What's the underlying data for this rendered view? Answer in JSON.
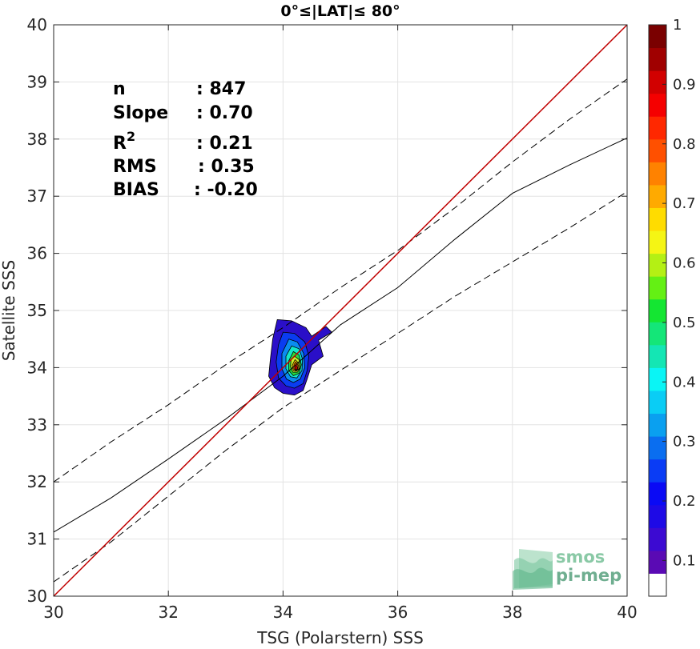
{
  "chart_data": {
    "type": "heatmap",
    "title": "0°≤|LAT|≤ 80°",
    "xlabel": "TSG (Polarstern) SSS",
    "ylabel": "Satellite SSS",
    "xlim": [
      30,
      40
    ],
    "ylim": [
      30,
      40
    ],
    "xticks": [
      "30",
      "32",
      "34",
      "36",
      "38",
      "40"
    ],
    "yticks": [
      "30",
      "31",
      "32",
      "33",
      "34",
      "35",
      "36",
      "37",
      "38",
      "39",
      "40"
    ],
    "grid": true,
    "stats": [
      {
        "label": "n",
        "value": ": 847"
      },
      {
        "label": "Slope",
        "value": ": 0.70"
      },
      {
        "label": "R",
        "sup": "2",
        "value": ": 0.21"
      },
      {
        "label": "RMS",
        "value": ": 0.35"
      },
      {
        "label": "BIAS",
        "value": ": -0.20"
      }
    ],
    "identity_line": {
      "slope": 1,
      "intercept": 0,
      "color": "#c00000"
    },
    "regression_line": {
      "points": [
        [
          30,
          31.12
        ],
        [
          31,
          31.72
        ],
        [
          32,
          32.4
        ],
        [
          33,
          33.1
        ],
        [
          34,
          33.85
        ],
        [
          35,
          34.75
        ],
        [
          36,
          35.4
        ],
        [
          37,
          36.25
        ],
        [
          38,
          37.05
        ],
        [
          39,
          37.55
        ],
        [
          40,
          38.02
        ]
      ]
    },
    "confidence_upper": {
      "points": [
        [
          30,
          32.0
        ],
        [
          31,
          32.7
        ],
        [
          32,
          33.35
        ],
        [
          33,
          34.05
        ],
        [
          34,
          34.7
        ],
        [
          35,
          35.4
        ],
        [
          36,
          36.05
        ],
        [
          37,
          36.8
        ],
        [
          38,
          37.6
        ],
        [
          39,
          38.35
        ],
        [
          40,
          39.05
        ]
      ]
    },
    "confidence_lower": {
      "points": [
        [
          30,
          30.25
        ],
        [
          31,
          30.95
        ],
        [
          32,
          31.75
        ],
        [
          33,
          32.55
        ],
        [
          34,
          33.3
        ],
        [
          35,
          33.95
        ],
        [
          36,
          34.6
        ],
        [
          37,
          35.25
        ],
        [
          38,
          35.85
        ],
        [
          39,
          36.45
        ],
        [
          40,
          37.08
        ]
      ]
    },
    "density_contours": [
      {
        "level": 0.1,
        "color": "#2a0fc8",
        "points": [
          [
            33.9,
            34.84
          ],
          [
            34.15,
            34.82
          ],
          [
            34.4,
            34.7
          ],
          [
            34.5,
            34.55
          ],
          [
            34.75,
            34.72
          ],
          [
            34.85,
            34.62
          ],
          [
            34.62,
            34.48
          ],
          [
            34.7,
            34.2
          ],
          [
            34.5,
            34.05
          ],
          [
            34.42,
            33.8
          ],
          [
            34.35,
            33.6
          ],
          [
            34.2,
            33.52
          ],
          [
            34.0,
            33.55
          ],
          [
            33.85,
            33.65
          ],
          [
            33.75,
            33.85
          ],
          [
            33.78,
            34.15
          ],
          [
            33.82,
            34.5
          ]
        ]
      },
      {
        "level": 0.2,
        "color": "#0a3cf0",
        "points": [
          [
            34.0,
            34.62
          ],
          [
            34.2,
            34.6
          ],
          [
            34.38,
            34.45
          ],
          [
            34.45,
            34.2
          ],
          [
            34.42,
            33.95
          ],
          [
            34.35,
            33.72
          ],
          [
            34.2,
            33.64
          ],
          [
            34.05,
            33.68
          ],
          [
            33.92,
            33.82
          ],
          [
            33.88,
            34.1
          ],
          [
            33.92,
            34.4
          ]
        ]
      },
      {
        "level": 0.3,
        "color": "#0a8cf0",
        "points": [
          [
            34.1,
            34.5
          ],
          [
            34.25,
            34.45
          ],
          [
            34.36,
            34.25
          ],
          [
            34.38,
            34.0
          ],
          [
            34.3,
            33.8
          ],
          [
            34.18,
            33.74
          ],
          [
            34.06,
            33.8
          ],
          [
            33.98,
            33.98
          ],
          [
            33.98,
            34.25
          ]
        ]
      },
      {
        "level": 0.4,
        "color": "#14e6c8",
        "points": [
          [
            34.15,
            34.38
          ],
          [
            34.28,
            34.33
          ],
          [
            34.34,
            34.15
          ],
          [
            34.33,
            33.95
          ],
          [
            34.24,
            33.82
          ],
          [
            34.13,
            33.84
          ],
          [
            34.05,
            33.98
          ],
          [
            34.05,
            34.2
          ]
        ]
      },
      {
        "level": 0.5,
        "color": "#28dc3c",
        "points": [
          [
            34.18,
            34.28
          ],
          [
            34.28,
            34.22
          ],
          [
            34.32,
            34.05
          ],
          [
            34.28,
            33.9
          ],
          [
            34.18,
            33.86
          ],
          [
            34.1,
            33.95
          ],
          [
            34.1,
            34.12
          ]
        ]
      },
      {
        "level": 0.6,
        "color": "#c8f028",
        "points": [
          [
            34.2,
            34.2
          ],
          [
            34.28,
            34.14
          ],
          [
            34.3,
            34.0
          ],
          [
            34.25,
            33.92
          ],
          [
            34.17,
            33.92
          ],
          [
            34.13,
            34.02
          ],
          [
            34.14,
            34.14
          ]
        ]
      },
      {
        "level": 0.7,
        "color": "#ffc800",
        "points": [
          [
            34.21,
            34.14
          ],
          [
            34.27,
            34.08
          ],
          [
            34.28,
            33.98
          ],
          [
            34.23,
            33.94
          ],
          [
            34.18,
            33.95
          ],
          [
            34.16,
            34.04
          ]
        ]
      },
      {
        "level": 0.8,
        "color": "#ff6e00",
        "points": [
          [
            34.22,
            34.1
          ],
          [
            34.26,
            34.04
          ],
          [
            34.26,
            33.97
          ],
          [
            34.22,
            33.95
          ],
          [
            34.19,
            33.98
          ],
          [
            34.19,
            34.05
          ]
        ]
      },
      {
        "level": 0.9,
        "color": "#e60000",
        "points": [
          [
            34.225,
            34.06
          ],
          [
            34.25,
            34.0
          ],
          [
            34.24,
            33.96
          ],
          [
            34.21,
            33.97
          ],
          [
            34.21,
            34.03
          ]
        ]
      }
    ],
    "colorbar": {
      "ticks": [
        "0.1",
        "0.2",
        "0.3",
        "0.4",
        "0.5",
        "0.6",
        "0.7",
        "0.8",
        "0.9",
        "1"
      ],
      "colors": [
        "#ffffff",
        "#5a0ab4",
        "#3c0ad2",
        "#1e0ae6",
        "#0a0af5",
        "#0a3cf5",
        "#0a6ef0",
        "#0aa0f0",
        "#0acdf5",
        "#0af5f5",
        "#14e6b4",
        "#14e678",
        "#14e632",
        "#64f014",
        "#b4f014",
        "#f5f514",
        "#ffdc00",
        "#ffaa00",
        "#ff8200",
        "#ff5000",
        "#ff2800",
        "#f50000",
        "#d20000",
        "#a00000",
        "#7a0000"
      ]
    }
  },
  "logo": {
    "line1": "smos",
    "line2": "pi-mep"
  }
}
